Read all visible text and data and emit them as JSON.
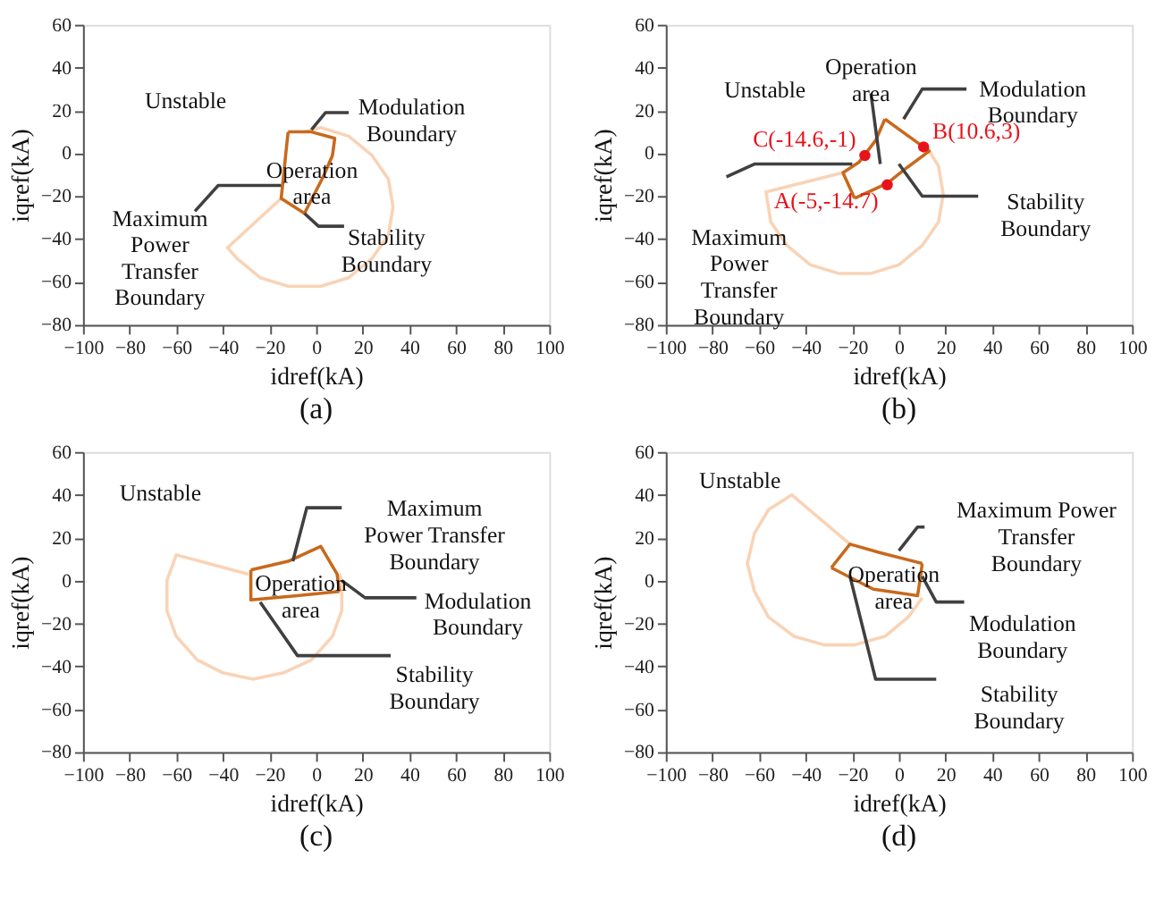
{
  "chart_data": [
    {
      "type": "line",
      "title": "(a)",
      "xlabel": "idref(kA)",
      "ylabel": "iqref(kA)",
      "xlim": [
        -100,
        100
      ],
      "ylim": [
        -80,
        60
      ],
      "xticks": [
        -100,
        -80,
        -60,
        -40,
        -20,
        0,
        20,
        40,
        60,
        80,
        100
      ],
      "yticks": [
        -80,
        -60,
        -40,
        -20,
        0,
        20,
        40,
        60
      ],
      "grid": false,
      "series": [
        {
          "color": "#f9d3b6",
          "x": [
            -15,
            -38,
            -34,
            -24,
            -12,
            2,
            14,
            24,
            31,
            33,
            31,
            24,
            14,
            2,
            -5
          ],
          "values": [
            -21,
            -44,
            -49,
            -58,
            -62,
            -62,
            -58,
            -49,
            -38,
            -25,
            -12,
            -1,
            8,
            12,
            10
          ]
        },
        {
          "color": "#c8691c",
          "x": [
            -12,
            -2,
            8,
            7,
            3,
            -5
          ],
          "values": [
            10,
            10,
            7,
            -1,
            -11,
            -28
          ]
        },
        {
          "color": "#c8691c",
          "x": [
            -5,
            -15,
            -14,
            -13,
            -12
          ],
          "values": [
            -28,
            -21,
            -11,
            0,
            10
          ]
        },
        {
          "color": "#404040",
          "x": [
            -2,
            4,
            14
          ],
          "values": [
            11,
            19,
            19
          ]
        },
        {
          "color": "#404040",
          "x": [
            -15,
            -42,
            -52
          ],
          "values": [
            -15,
            -15,
            -27
          ]
        },
        {
          "color": "#404040",
          "x": [
            -5,
            1,
            12
          ],
          "values": [
            -28,
            -34,
            -34
          ]
        }
      ],
      "annotations": [
        "Unstable",
        "Modulation\nBoundary",
        "Operation\narea",
        "Maximum\nPower\nTransfer\nBoundary",
        "Stability\nBoundary"
      ]
    },
    {
      "type": "line",
      "title": "(b)",
      "xlabel": "idref(kA)",
      "ylabel": "iqref(kA)",
      "xlim": [
        -100,
        100
      ],
      "ylim": [
        -80,
        60
      ],
      "xticks": [
        -100,
        -80,
        -60,
        -40,
        -20,
        0,
        20,
        40,
        60,
        80,
        100
      ],
      "yticks": [
        -80,
        -60,
        -40,
        -20,
        0,
        20,
        40,
        60
      ],
      "grid": false,
      "series": [
        {
          "color": "#f9d3b6",
          "x": [
            -24,
            -57,
            -55,
            -48,
            -38,
            -26,
            -12,
            0,
            10,
            17,
            19,
            17,
            12
          ],
          "values": [
            -9,
            -18,
            -32,
            -43,
            -52,
            -56,
            -56,
            -52,
            -43,
            -32,
            -19,
            -6,
            3
          ]
        },
        {
          "color": "#c8691c",
          "x": [
            -6,
            13,
            3,
            -5,
            -19
          ],
          "values": [
            16,
            1,
            -7,
            -14,
            -21
          ]
        },
        {
          "color": "#c8691c",
          "x": [
            -19,
            -24,
            -17,
            -10,
            -6
          ],
          "values": [
            -21,
            -9,
            -4,
            6,
            16
          ]
        },
        {
          "color": "#404040",
          "x": [
            -12,
            -8
          ],
          "values": [
            28,
            -5
          ]
        },
        {
          "color": "#404040",
          "x": [
            2,
            10,
            29
          ],
          "values": [
            16,
            30,
            30
          ]
        },
        {
          "color": "#404040",
          "x": [
            -20,
            -62,
            -74
          ],
          "values": [
            -5,
            -5,
            -11
          ]
        },
        {
          "color": "#404040",
          "x": [
            0,
            10,
            34
          ],
          "values": [
            -5,
            -20,
            -20
          ]
        },
        {
          "type": "scatter",
          "marker": "circle",
          "color": "#e8131a",
          "x": [
            -5,
            10.6,
            -14.6
          ],
          "values": [
            -14.7,
            3,
            -1
          ],
          "value_labels": [
            "A(-5,-14.7)",
            "B(10.6,3)",
            "C(-14.6,-1)"
          ]
        }
      ],
      "annotations": [
        "Operation\narea",
        "Unstable",
        "Modulation\nBoundary",
        "Maximum\nPower\nTransfer\nBoundary",
        "Stability\nBoundary"
      ]
    },
    {
      "type": "line",
      "title": "(c)",
      "xlabel": "idref(kA)",
      "ylabel": "iqref(kA)",
      "xlim": [
        -100,
        100
      ],
      "ylim": [
        -80,
        60
      ],
      "xticks": [
        -100,
        -80,
        -60,
        -40,
        -20,
        0,
        20,
        40,
        60,
        80,
        100
      ],
      "yticks": [
        -80,
        -60,
        -40,
        -20,
        0,
        20,
        40,
        60
      ],
      "grid": false,
      "series": [
        {
          "color": "#f9d3b6",
          "x": [
            -29,
            -60,
            -64,
            -64,
            -60,
            -51,
            -40,
            -27,
            -14,
            -2,
            7,
            11,
            11,
            10
          ],
          "values": [
            3,
            12,
            0,
            -14,
            -26,
            -37,
            -43,
            -46,
            -43,
            -37,
            -26,
            -14,
            0,
            3
          ]
        },
        {
          "color": "#c8691c",
          "x": [
            -28,
            -12,
            2,
            9,
            10
          ],
          "values": [
            5,
            9,
            16,
            3,
            -5
          ]
        },
        {
          "color": "#c8691c",
          "x": [
            10,
            -8,
            -28,
            -28
          ],
          "values": [
            -5,
            -7,
            -9,
            5
          ]
        },
        {
          "color": "#404040",
          "x": [
            -10,
            -4,
            11
          ],
          "values": [
            9,
            34,
            34
          ]
        },
        {
          "color": "#404040",
          "x": [
            11,
            21,
            43
          ],
          "values": [
            0,
            -8,
            -8
          ]
        },
        {
          "color": "#404040",
          "x": [
            -24,
            -8,
            32
          ],
          "values": [
            -10,
            -35,
            -35
          ]
        }
      ],
      "annotations": [
        "Unstable",
        "Maximum\nPower Transfer\nBoundary",
        "Operation\narea",
        "Modulation\nBoundary",
        "Stability\nBoundary"
      ]
    },
    {
      "type": "line",
      "title": "(d)",
      "xlabel": "idref(kA)",
      "ylabel": "iqref(kA)",
      "xlim": [
        -100,
        100
      ],
      "ylim": [
        -80,
        60
      ],
      "xticks": [
        -100,
        -80,
        -60,
        -40,
        -20,
        0,
        20,
        40,
        60,
        80,
        100
      ],
      "yticks": [
        -80,
        -60,
        -40,
        -20,
        0,
        20,
        40,
        60
      ],
      "grid": false,
      "series": [
        {
          "color": "#f9d3b6",
          "x": [
            -21,
            -46,
            -56,
            -62,
            -65,
            -62,
            -56,
            -45,
            -32,
            -19,
            -6,
            4,
            10
          ],
          "values": [
            17,
            40,
            33,
            22,
            8,
            -5,
            -17,
            -26,
            -30,
            -30,
            -26,
            -17,
            -8
          ]
        },
        {
          "color": "#c8691c",
          "x": [
            -29,
            -21,
            -8,
            10
          ],
          "values": [
            6,
            17,
            13,
            8
          ]
        },
        {
          "color": "#c8691c",
          "x": [
            10,
            9,
            8,
            -11,
            -29
          ],
          "values": [
            8,
            0,
            -7,
            -4,
            6
          ]
        },
        {
          "color": "#404040",
          "x": [
            0,
            8,
            11
          ],
          "values": [
            14,
            25,
            25
          ]
        },
        {
          "color": "#404040",
          "x": [
            10,
            16,
            28
          ],
          "values": [
            2,
            -10,
            -10
          ]
        },
        {
          "color": "#404040",
          "x": [
            -21,
            -10,
            16
          ],
          "values": [
            2,
            -46,
            -46
          ]
        }
      ],
      "annotations": [
        "Unstable",
        "Maximum Power\nTransfer\nBoundary",
        "Operation\narea",
        "Modulation\nBoundary",
        "Stability\nBoundary"
      ]
    }
  ]
}
